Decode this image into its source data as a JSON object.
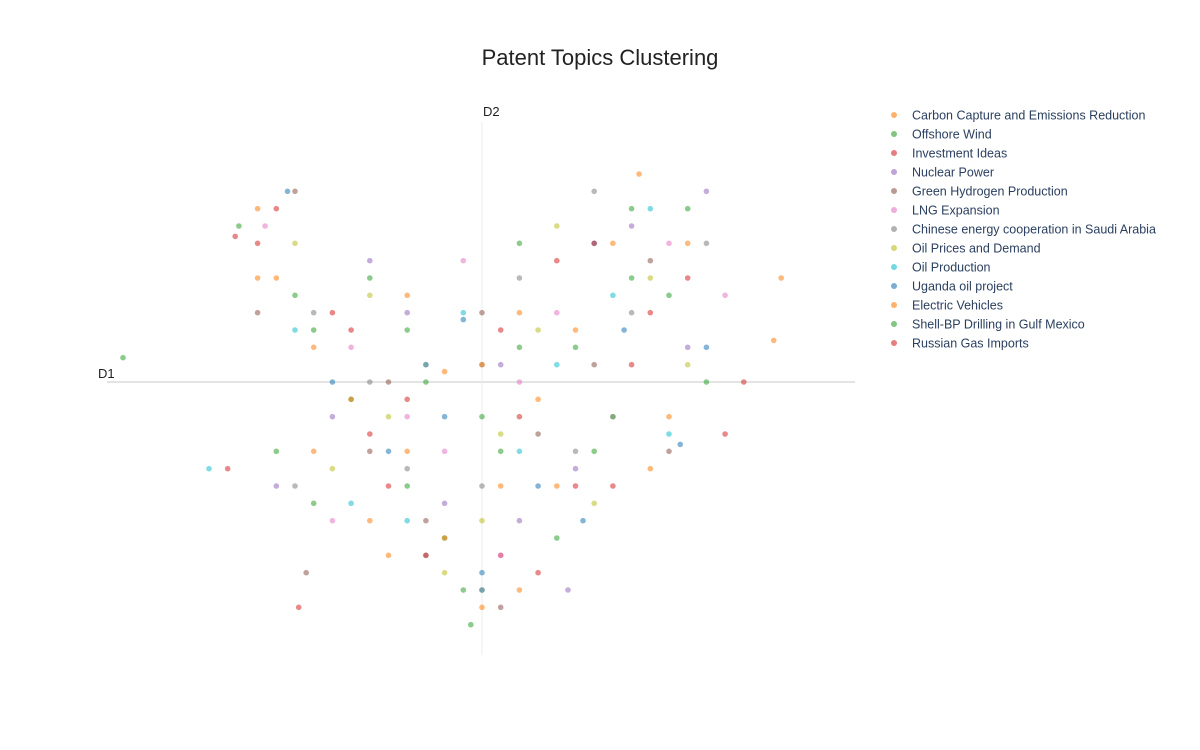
{
  "chart_data": {
    "type": "scatter",
    "title": "Patent Topics Clustering",
    "xlabel": "D1",
    "ylabel": "D2",
    "xlim": [
      -10,
      10
    ],
    "ylim": [
      -7.5,
      7.5
    ],
    "grid": false,
    "legend_position": "right",
    "series": [
      {
        "name": "Carbon Capture and Emissions Reduction",
        "color": "#ff7f0e",
        "points": [
          [
            -6.0,
            5.0
          ],
          [
            -4.5,
            1.0
          ],
          [
            -2.0,
            -2.0
          ],
          [
            1.0,
            2.0
          ],
          [
            3.5,
            4.0
          ],
          [
            -3.0,
            -4.0
          ],
          [
            0.0,
            -6.5
          ],
          [
            5.0,
            -1.0
          ],
          [
            -1.0,
            0.3
          ],
          [
            2.0,
            -3.0
          ],
          [
            8.0,
            3.0
          ],
          [
            -5.5,
            3.0
          ],
          [
            4.2,
            6.0
          ],
          [
            -2.5,
            -5.0
          ],
          [
            1.5,
            -0.5
          ]
        ]
      },
      {
        "name": "Offshore Wind",
        "color": "#2ca02c",
        "points": [
          [
            -9.6,
            0.7
          ],
          [
            -5.0,
            2.5
          ],
          [
            -3.5,
            -0.5
          ],
          [
            0.0,
            -1.0
          ],
          [
            2.5,
            1.0
          ],
          [
            4.0,
            3.0
          ],
          [
            6.0,
            0.0
          ],
          [
            -4.5,
            -3.5
          ],
          [
            -1.0,
            -4.5
          ],
          [
            -0.3,
            -7.0
          ],
          [
            3.0,
            -2.0
          ],
          [
            5.5,
            5.0
          ],
          [
            -6.5,
            4.5
          ],
          [
            1.0,
            4.0
          ],
          [
            -2.0,
            1.5
          ]
        ]
      },
      {
        "name": "Investment Ideas",
        "color": "#d62728",
        "points": [
          [
            -4.9,
            -6.5
          ],
          [
            -6.8,
            -2.5
          ],
          [
            -5.5,
            5.0
          ],
          [
            -2.5,
            -3.0
          ],
          [
            1.0,
            -1.0
          ],
          [
            4.5,
            2.0
          ],
          [
            -1.5,
            0.5
          ],
          [
            0.5,
            -5.0
          ],
          [
            3.5,
            -3.0
          ],
          [
            -3.5,
            1.5
          ],
          [
            2.0,
            3.5
          ],
          [
            6.5,
            -1.5
          ],
          [
            -6.0,
            4.0
          ],
          [
            0.0,
            -6.0
          ]
        ]
      },
      {
        "name": "Nuclear Power",
        "color": "#9467bd",
        "points": [
          [
            -4.0,
            -1.0
          ],
          [
            -2.0,
            2.0
          ],
          [
            2.5,
            -2.5
          ],
          [
            4.0,
            4.5
          ],
          [
            -5.5,
            -3.0
          ],
          [
            0.5,
            0.5
          ],
          [
            2.3,
            -6.0
          ],
          [
            -1.0,
            -3.5
          ],
          [
            5.5,
            1.0
          ],
          [
            -3.0,
            3.5
          ],
          [
            1.0,
            -4.0
          ],
          [
            6.0,
            5.5
          ]
        ]
      },
      {
        "name": "Green Hydrogen Production",
        "color": "#8c564b",
        "points": [
          [
            -4.7,
            -5.5
          ],
          [
            -5.0,
            5.5
          ],
          [
            -3.0,
            -2.0
          ],
          [
            0.0,
            2.0
          ],
          [
            3.0,
            0.5
          ],
          [
            -1.5,
            -4.0
          ],
          [
            4.5,
            3.5
          ],
          [
            1.5,
            -1.5
          ],
          [
            -2.5,
            0.0
          ],
          [
            5.0,
            -2.0
          ],
          [
            0.5,
            -6.5
          ],
          [
            -6.0,
            2.0
          ]
        ]
      },
      {
        "name": "LNG Expansion",
        "color": "#e377c2",
        "points": [
          [
            -5.8,
            4.5
          ],
          [
            -3.5,
            1.0
          ],
          [
            -1.0,
            -2.0
          ],
          [
            2.0,
            2.0
          ],
          [
            5.0,
            4.0
          ],
          [
            -4.0,
            -4.0
          ],
          [
            0.5,
            -5.0
          ],
          [
            3.5,
            -1.0
          ],
          [
            -2.0,
            -1.0
          ],
          [
            6.5,
            2.5
          ],
          [
            1.0,
            0.0
          ],
          [
            -0.5,
            3.5
          ]
        ]
      },
      {
        "name": "Chinese energy cooperation in Saudi Arabia",
        "color": "#7f7f7f",
        "points": [
          [
            -3.0,
            0.0
          ],
          [
            0.0,
            0.5
          ],
          [
            2.5,
            -2.0
          ],
          [
            -5.0,
            -3.0
          ],
          [
            4.0,
            2.0
          ],
          [
            -1.5,
            -5.0
          ],
          [
            1.0,
            3.0
          ],
          [
            6.0,
            4.0
          ],
          [
            -4.5,
            2.0
          ],
          [
            0.0,
            -3.0
          ],
          [
            3.0,
            5.5
          ],
          [
            -2.0,
            -2.5
          ]
        ]
      },
      {
        "name": "Oil Prices and Demand",
        "color": "#bcbd22",
        "points": [
          [
            -2.5,
            -1.0
          ],
          [
            1.5,
            1.5
          ],
          [
            -4.0,
            -2.5
          ],
          [
            3.0,
            -3.5
          ],
          [
            -1.0,
            -5.5
          ],
          [
            4.5,
            3.0
          ],
          [
            -5.0,
            4.0
          ],
          [
            0.5,
            -1.5
          ],
          [
            2.0,
            4.5
          ],
          [
            -3.0,
            2.5
          ],
          [
            5.5,
            0.5
          ],
          [
            0.0,
            -4.0
          ]
        ]
      },
      {
        "name": "Oil Production",
        "color": "#17becf",
        "points": [
          [
            -7.3,
            -2.5
          ],
          [
            -1.5,
            0.5
          ],
          [
            1.0,
            -2.0
          ],
          [
            -3.5,
            -3.5
          ],
          [
            3.5,
            2.5
          ],
          [
            0.0,
            -6.0
          ],
          [
            5.0,
            -1.5
          ],
          [
            -5.0,
            1.5
          ],
          [
            2.0,
            0.5
          ],
          [
            -2.0,
            -4.0
          ],
          [
            4.5,
            5.0
          ],
          [
            -0.5,
            2.0
          ]
        ]
      },
      {
        "name": "Uganda oil project",
        "color": "#1f77b4",
        "points": [
          [
            -5.2,
            5.5
          ],
          [
            -0.5,
            1.8
          ],
          [
            3.0,
            4.0
          ],
          [
            -2.5,
            -2.0
          ],
          [
            1.5,
            -3.0
          ],
          [
            5.3,
            -1.8
          ],
          [
            -4.0,
            0.0
          ],
          [
            0.0,
            -5.5
          ],
          [
            2.7,
            -4.0
          ],
          [
            6.0,
            1.0
          ],
          [
            -1.0,
            -1.0
          ],
          [
            3.8,
            1.5
          ]
        ]
      },
      {
        "name": "Electric Vehicles",
        "color": "#ff7f0e",
        "points": [
          [
            -3.5,
            -0.5
          ],
          [
            -6.0,
            3.0
          ],
          [
            0.5,
            -3.0
          ],
          [
            2.5,
            1.5
          ],
          [
            -1.0,
            -4.5
          ],
          [
            4.5,
            -2.5
          ],
          [
            7.8,
            1.2
          ],
          [
            -2.0,
            2.5
          ],
          [
            1.0,
            -6.0
          ],
          [
            5.5,
            4.0
          ],
          [
            -4.5,
            -2.0
          ],
          [
            0.0,
            0.5
          ]
        ]
      },
      {
        "name": "Shell-BP Drilling in Gulf Mexico",
        "color": "#2ca02c",
        "points": [
          [
            -4.5,
            1.5
          ],
          [
            -2.0,
            -3.0
          ],
          [
            1.0,
            1.0
          ],
          [
            3.5,
            -1.0
          ],
          [
            -0.5,
            -6.0
          ],
          [
            5.0,
            2.5
          ],
          [
            -5.5,
            -2.0
          ],
          [
            2.0,
            -4.5
          ],
          [
            -3.0,
            3.0
          ],
          [
            4.0,
            5.0
          ],
          [
            0.5,
            -2.0
          ],
          [
            -1.5,
            0.0
          ]
        ]
      },
      {
        "name": "Russian Gas Imports",
        "color": "#d62728",
        "points": [
          [
            -6.6,
            4.2
          ],
          [
            -3.0,
            -1.5
          ],
          [
            0.5,
            1.5
          ],
          [
            2.5,
            -3.0
          ],
          [
            -1.5,
            -5.0
          ],
          [
            4.0,
            0.5
          ],
          [
            7.0,
            0.0
          ],
          [
            -4.0,
            2.0
          ],
          [
            1.5,
            -5.5
          ],
          [
            5.5,
            3.0
          ],
          [
            -2.0,
            -0.5
          ],
          [
            3.0,
            4.0
          ]
        ]
      }
    ]
  }
}
